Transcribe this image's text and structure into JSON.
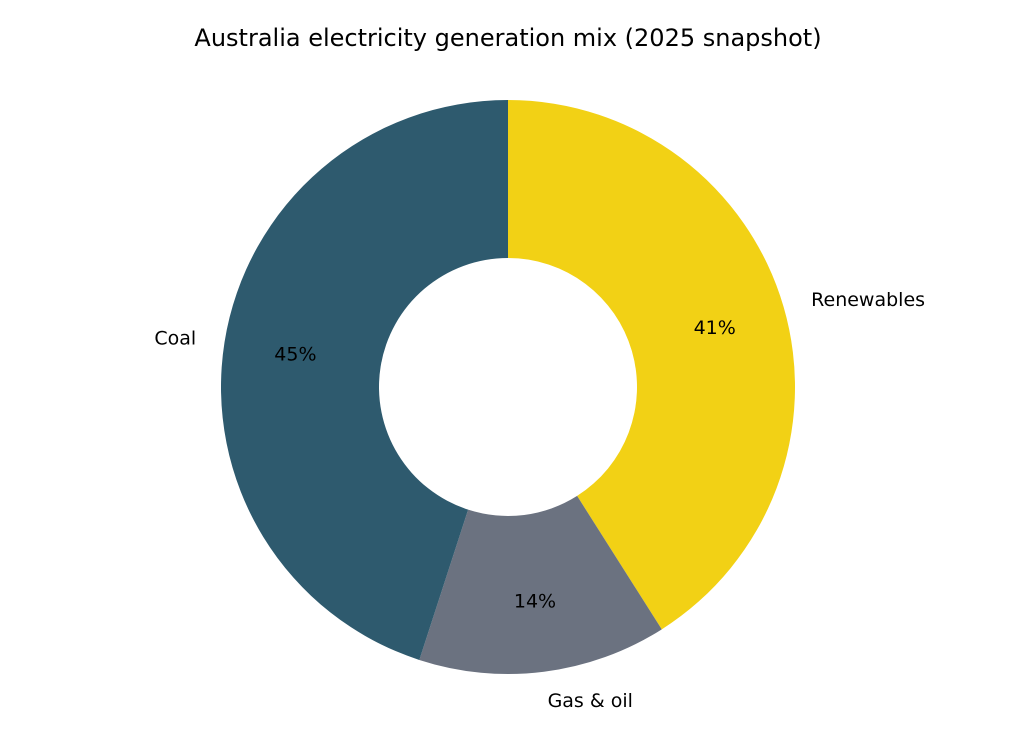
{
  "chart_data": {
    "type": "pie",
    "variant": "donut",
    "title": "Australia electricity generation mix (2025 snapshot)",
    "start": "top",
    "direction": "clockwise",
    "slices": [
      {
        "label": "Renewables",
        "value": 41,
        "pct_label": "41%",
        "color": "#F2D115"
      },
      {
        "label": "Gas & oil",
        "value": 14,
        "pct_label": "14%",
        "color": "#6B7280"
      },
      {
        "label": "Coal",
        "value": 45,
        "pct_label": "45%",
        "color": "#2E5A6E"
      }
    ]
  }
}
